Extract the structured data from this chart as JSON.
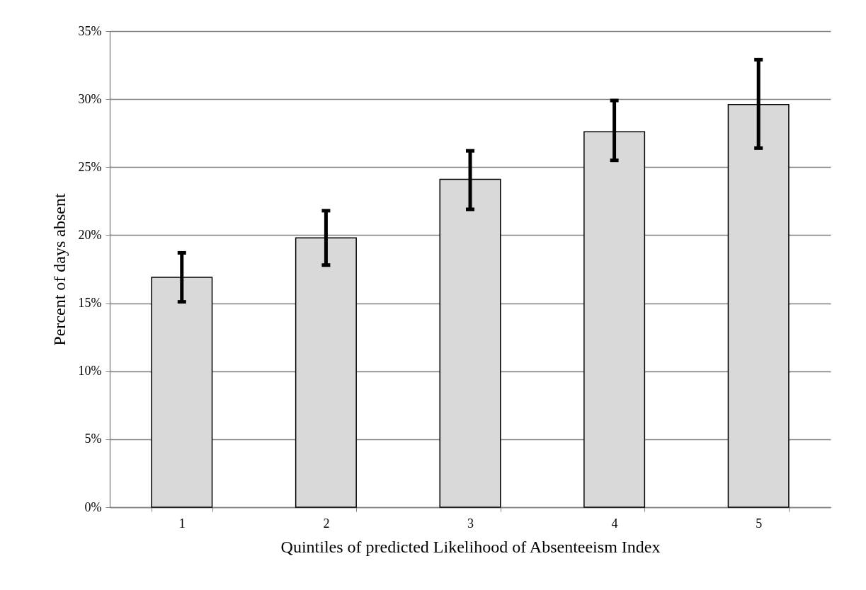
{
  "chart_data": {
    "type": "bar",
    "xlabel": "Quintiles of predicted Likelihood of Absenteeism Index",
    "ylabel": "Percent of days absent",
    "categories": [
      "1",
      "2",
      "3",
      "4",
      "5"
    ],
    "values": [
      16.9,
      19.8,
      24.1,
      27.6,
      29.6
    ],
    "errors": [
      [
        15.1,
        18.7
      ],
      [
        17.8,
        21.8
      ],
      [
        21.9,
        26.2
      ],
      [
        25.5,
        29.9
      ],
      [
        26.4,
        32.9
      ]
    ],
    "color": "#d9d9d9",
    "ylim": [
      0,
      35
    ],
    "yticks": [
      {
        "value": 0,
        "label": "0%"
      },
      {
        "value": 5,
        "label": "5%"
      },
      {
        "value": 10,
        "label": "10%"
      },
      {
        "value": 15,
        "label": "15%"
      },
      {
        "value": 20,
        "label": "20%"
      },
      {
        "value": 25,
        "label": "25%"
      },
      {
        "value": 30,
        "label": "30%"
      },
      {
        "value": 35,
        "label": "35%"
      }
    ],
    "grid": "y"
  }
}
